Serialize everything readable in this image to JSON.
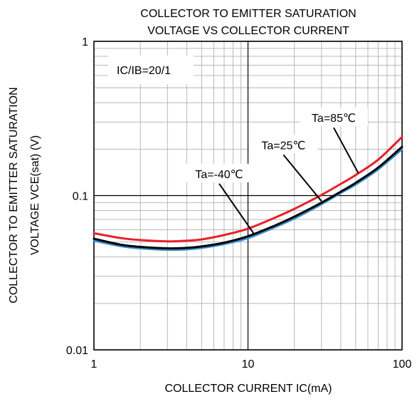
{
  "chart_data": {
    "type": "line",
    "title": [
      "COLLECTOR TO EMITTER SATURATION",
      "VOLTAGE VS COLLECTOR CURRENT"
    ],
    "xlabel": "COLLECTOR CURRENT  IC(mA)",
    "ylabel": [
      "COLLECTOR TO EMITTER SATURATION",
      "VOLTAGE VCE(sat) (V)"
    ],
    "x_scale": "log",
    "y_scale": "log",
    "xlim": [
      1,
      100
    ],
    "ylim": [
      0.01,
      1
    ],
    "x_ticks": [
      {
        "value": 1,
        "label": "1"
      },
      {
        "value": 10,
        "label": "10"
      },
      {
        "value": 100,
        "label": "100"
      }
    ],
    "y_ticks": [
      {
        "value": 1,
        "label": "1"
      },
      {
        "value": 0.1,
        "label": "0.1"
      },
      {
        "value": 0.01,
        "label": "0.01"
      }
    ],
    "grid": true,
    "condition_label": "IC/IB=20/1",
    "series": [
      {
        "name": "Ta=-40℃",
        "color": "#3a8fd0",
        "x": [
          1,
          1.5,
          2,
          3,
          4,
          5,
          7,
          10,
          15,
          20,
          30,
          40,
          50,
          70,
          100
        ],
        "y": [
          0.051,
          0.047,
          0.0455,
          0.0445,
          0.0448,
          0.0458,
          0.0485,
          0.053,
          0.0625,
          0.071,
          0.088,
          0.104,
          0.118,
          0.148,
          0.2
        ]
      },
      {
        "name": "Ta=25℃",
        "color": "#000000",
        "x": [
          1,
          1.5,
          2,
          3,
          4,
          5,
          7,
          10,
          15,
          20,
          30,
          40,
          50,
          70,
          100
        ],
        "y": [
          0.0525,
          0.048,
          0.0465,
          0.0455,
          0.0458,
          0.0468,
          0.0495,
          0.0545,
          0.064,
          0.073,
          0.09,
          0.106,
          0.121,
          0.152,
          0.207
        ]
      },
      {
        "name": "Ta=85℃",
        "color": "#e8202a",
        "x": [
          1,
          1.5,
          2,
          3,
          4,
          5,
          7,
          10,
          15,
          20,
          30,
          40,
          50,
          70,
          100
        ],
        "y": [
          0.057,
          0.053,
          0.0515,
          0.0505,
          0.051,
          0.052,
          0.0555,
          0.061,
          0.072,
          0.082,
          0.101,
          0.119,
          0.136,
          0.171,
          0.24
        ]
      }
    ],
    "annotations": [
      {
        "text": "Ta=85℃",
        "label_x": 36,
        "label_y": 0.3,
        "point_x": 52,
        "point_y": 0.14
      },
      {
        "text": "Ta=25℃",
        "label_x": 17,
        "label_y": 0.2,
        "point_x": 30,
        "point_y": 0.092
      },
      {
        "text": "Ta=-40℃",
        "label_x": 6.5,
        "label_y": 0.13,
        "point_x": 11,
        "point_y": 0.056
      }
    ]
  }
}
